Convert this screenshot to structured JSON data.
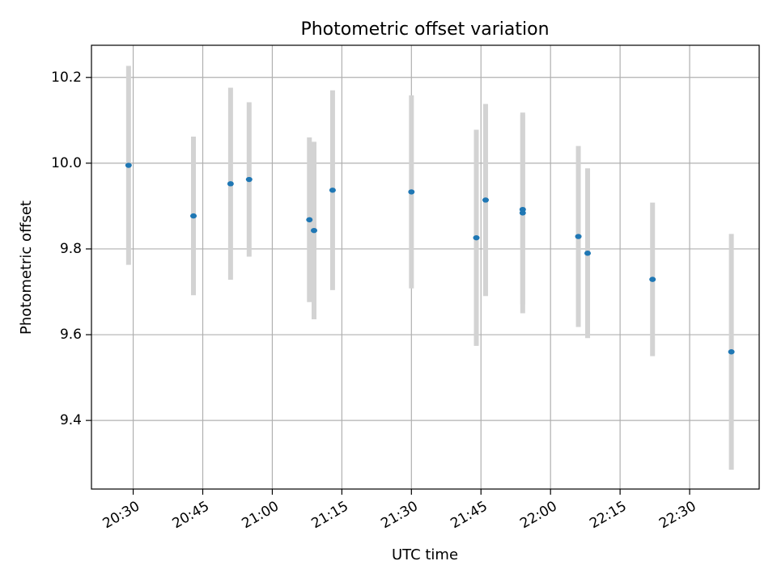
{
  "chart_data": {
    "type": "scatter",
    "title": "Photometric offset variation",
    "xlabel": "UTC time",
    "ylabel": "Photometric offset",
    "x_ticks": [
      "20:30",
      "20:45",
      "21:00",
      "21:15",
      "21:30",
      "21:45",
      "22:00",
      "22:15",
      "22:30"
    ],
    "y_ticks": [
      "9.4",
      "9.6",
      "9.8",
      "10.0",
      "10.2"
    ],
    "xlim": [
      "20:21",
      "22:45"
    ],
    "ylim": [
      9.24,
      10.275
    ],
    "grid": true,
    "series": [
      {
        "x": [
          "20:29",
          "20:43",
          "20:51",
          "20:55",
          "21:08",
          "21:09",
          "21:13",
          "21:30",
          "21:44",
          "21:46",
          "21:54",
          "21:54",
          "22:06",
          "22:08",
          "22:22",
          "22:39"
        ],
        "y": [
          9.995,
          9.877,
          9.952,
          9.962,
          9.868,
          9.843,
          9.937,
          9.933,
          9.826,
          9.914,
          9.884,
          9.892,
          9.829,
          9.79,
          9.729,
          9.56
        ],
        "yerr": [
          0.232,
          0.185,
          0.224,
          0.18,
          0.192,
          0.207,
          0.233,
          0.225,
          0.252,
          0.224,
          0.234,
          0.221,
          0.211,
          0.198,
          0.179,
          0.275
        ]
      }
    ],
    "colors": {
      "marker": "#1f77b4",
      "errorbar": "#d3d3d3",
      "grid": "#b0b0b0",
      "axes": "#000000"
    }
  }
}
